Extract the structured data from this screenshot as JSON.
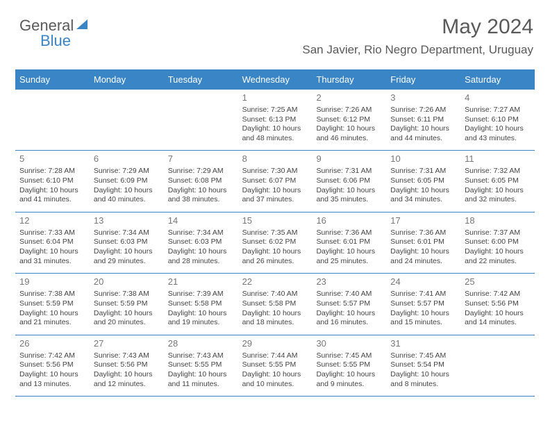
{
  "brand": {
    "part1": "General",
    "part2": "Blue"
  },
  "header": {
    "title": "May 2024",
    "location": "San Javier, Rio Negro Department, Uruguay"
  },
  "colors": {
    "accent": "#3a85c6",
    "text": "#444444",
    "daynum": "#777777",
    "title": "#5a5a5a",
    "background": "#ffffff"
  },
  "day_names": [
    "Sunday",
    "Monday",
    "Tuesday",
    "Wednesday",
    "Thursday",
    "Friday",
    "Saturday"
  ],
  "weeks": [
    [
      {
        "blank": true
      },
      {
        "blank": true
      },
      {
        "blank": true
      },
      {
        "day": "1",
        "sunrise": "Sunrise: 7:25 AM",
        "sunset": "Sunset: 6:13 PM",
        "dl1": "Daylight: 10 hours",
        "dl2": "and 48 minutes."
      },
      {
        "day": "2",
        "sunrise": "Sunrise: 7:26 AM",
        "sunset": "Sunset: 6:12 PM",
        "dl1": "Daylight: 10 hours",
        "dl2": "and 46 minutes."
      },
      {
        "day": "3",
        "sunrise": "Sunrise: 7:26 AM",
        "sunset": "Sunset: 6:11 PM",
        "dl1": "Daylight: 10 hours",
        "dl2": "and 44 minutes."
      },
      {
        "day": "4",
        "sunrise": "Sunrise: 7:27 AM",
        "sunset": "Sunset: 6:10 PM",
        "dl1": "Daylight: 10 hours",
        "dl2": "and 43 minutes."
      }
    ],
    [
      {
        "day": "5",
        "sunrise": "Sunrise: 7:28 AM",
        "sunset": "Sunset: 6:10 PM",
        "dl1": "Daylight: 10 hours",
        "dl2": "and 41 minutes."
      },
      {
        "day": "6",
        "sunrise": "Sunrise: 7:29 AM",
        "sunset": "Sunset: 6:09 PM",
        "dl1": "Daylight: 10 hours",
        "dl2": "and 40 minutes."
      },
      {
        "day": "7",
        "sunrise": "Sunrise: 7:29 AM",
        "sunset": "Sunset: 6:08 PM",
        "dl1": "Daylight: 10 hours",
        "dl2": "and 38 minutes."
      },
      {
        "day": "8",
        "sunrise": "Sunrise: 7:30 AM",
        "sunset": "Sunset: 6:07 PM",
        "dl1": "Daylight: 10 hours",
        "dl2": "and 37 minutes."
      },
      {
        "day": "9",
        "sunrise": "Sunrise: 7:31 AM",
        "sunset": "Sunset: 6:06 PM",
        "dl1": "Daylight: 10 hours",
        "dl2": "and 35 minutes."
      },
      {
        "day": "10",
        "sunrise": "Sunrise: 7:31 AM",
        "sunset": "Sunset: 6:05 PM",
        "dl1": "Daylight: 10 hours",
        "dl2": "and 34 minutes."
      },
      {
        "day": "11",
        "sunrise": "Sunrise: 7:32 AM",
        "sunset": "Sunset: 6:05 PM",
        "dl1": "Daylight: 10 hours",
        "dl2": "and 32 minutes."
      }
    ],
    [
      {
        "day": "12",
        "sunrise": "Sunrise: 7:33 AM",
        "sunset": "Sunset: 6:04 PM",
        "dl1": "Daylight: 10 hours",
        "dl2": "and 31 minutes."
      },
      {
        "day": "13",
        "sunrise": "Sunrise: 7:34 AM",
        "sunset": "Sunset: 6:03 PM",
        "dl1": "Daylight: 10 hours",
        "dl2": "and 29 minutes."
      },
      {
        "day": "14",
        "sunrise": "Sunrise: 7:34 AM",
        "sunset": "Sunset: 6:03 PM",
        "dl1": "Daylight: 10 hours",
        "dl2": "and 28 minutes."
      },
      {
        "day": "15",
        "sunrise": "Sunrise: 7:35 AM",
        "sunset": "Sunset: 6:02 PM",
        "dl1": "Daylight: 10 hours",
        "dl2": "and 26 minutes."
      },
      {
        "day": "16",
        "sunrise": "Sunrise: 7:36 AM",
        "sunset": "Sunset: 6:01 PM",
        "dl1": "Daylight: 10 hours",
        "dl2": "and 25 minutes."
      },
      {
        "day": "17",
        "sunrise": "Sunrise: 7:36 AM",
        "sunset": "Sunset: 6:01 PM",
        "dl1": "Daylight: 10 hours",
        "dl2": "and 24 minutes."
      },
      {
        "day": "18",
        "sunrise": "Sunrise: 7:37 AM",
        "sunset": "Sunset: 6:00 PM",
        "dl1": "Daylight: 10 hours",
        "dl2": "and 22 minutes."
      }
    ],
    [
      {
        "day": "19",
        "sunrise": "Sunrise: 7:38 AM",
        "sunset": "Sunset: 5:59 PM",
        "dl1": "Daylight: 10 hours",
        "dl2": "and 21 minutes."
      },
      {
        "day": "20",
        "sunrise": "Sunrise: 7:38 AM",
        "sunset": "Sunset: 5:59 PM",
        "dl1": "Daylight: 10 hours",
        "dl2": "and 20 minutes."
      },
      {
        "day": "21",
        "sunrise": "Sunrise: 7:39 AM",
        "sunset": "Sunset: 5:58 PM",
        "dl1": "Daylight: 10 hours",
        "dl2": "and 19 minutes."
      },
      {
        "day": "22",
        "sunrise": "Sunrise: 7:40 AM",
        "sunset": "Sunset: 5:58 PM",
        "dl1": "Daylight: 10 hours",
        "dl2": "and 18 minutes."
      },
      {
        "day": "23",
        "sunrise": "Sunrise: 7:40 AM",
        "sunset": "Sunset: 5:57 PM",
        "dl1": "Daylight: 10 hours",
        "dl2": "and 16 minutes."
      },
      {
        "day": "24",
        "sunrise": "Sunrise: 7:41 AM",
        "sunset": "Sunset: 5:57 PM",
        "dl1": "Daylight: 10 hours",
        "dl2": "and 15 minutes."
      },
      {
        "day": "25",
        "sunrise": "Sunrise: 7:42 AM",
        "sunset": "Sunset: 5:56 PM",
        "dl1": "Daylight: 10 hours",
        "dl2": "and 14 minutes."
      }
    ],
    [
      {
        "day": "26",
        "sunrise": "Sunrise: 7:42 AM",
        "sunset": "Sunset: 5:56 PM",
        "dl1": "Daylight: 10 hours",
        "dl2": "and 13 minutes."
      },
      {
        "day": "27",
        "sunrise": "Sunrise: 7:43 AM",
        "sunset": "Sunset: 5:56 PM",
        "dl1": "Daylight: 10 hours",
        "dl2": "and 12 minutes."
      },
      {
        "day": "28",
        "sunrise": "Sunrise: 7:43 AM",
        "sunset": "Sunset: 5:55 PM",
        "dl1": "Daylight: 10 hours",
        "dl2": "and 11 minutes."
      },
      {
        "day": "29",
        "sunrise": "Sunrise: 7:44 AM",
        "sunset": "Sunset: 5:55 PM",
        "dl1": "Daylight: 10 hours",
        "dl2": "and 10 minutes."
      },
      {
        "day": "30",
        "sunrise": "Sunrise: 7:45 AM",
        "sunset": "Sunset: 5:55 PM",
        "dl1": "Daylight: 10 hours",
        "dl2": "and 9 minutes."
      },
      {
        "day": "31",
        "sunrise": "Sunrise: 7:45 AM",
        "sunset": "Sunset: 5:54 PM",
        "dl1": "Daylight: 10 hours",
        "dl2": "and 8 minutes."
      },
      {
        "blank": true
      }
    ]
  ]
}
